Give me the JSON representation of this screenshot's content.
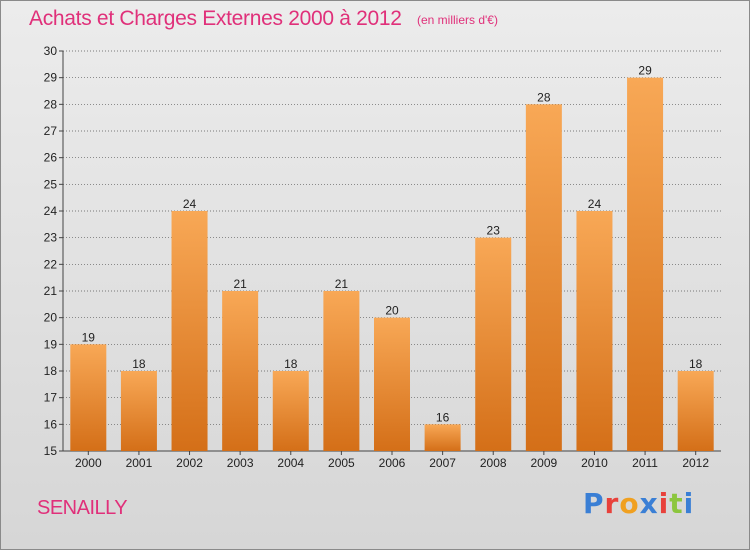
{
  "header": {
    "title": "Achats et Charges Externes 2000 à 2012",
    "subtitle": "(en milliers d'€)"
  },
  "footer": {
    "commune": "SENAILLY",
    "logo_text": "Proxiti",
    "logo_colors": [
      "#3a7fd5",
      "#e8413b",
      "#f0a020",
      "#3a7fd5",
      "#e8413b",
      "#8cc63e",
      "#3a7fd5"
    ]
  },
  "colors": {
    "bar_light": "#f8a856",
    "bar_dark": "#d46f18",
    "title": "#e0307a",
    "grid": "#555555"
  },
  "chart_data": {
    "type": "bar",
    "title": "Achats et Charges Externes 2000 à 2012",
    "subtitle": "(en milliers d'€)",
    "categories": [
      "2000",
      "2001",
      "2002",
      "2003",
      "2004",
      "2005",
      "2006",
      "2007",
      "2008",
      "2009",
      "2010",
      "2011",
      "2012"
    ],
    "values": [
      19,
      18,
      24,
      21,
      18,
      21,
      20,
      16,
      23,
      28,
      24,
      29,
      18
    ],
    "ylim": [
      15,
      30
    ],
    "yticks": [
      15,
      16,
      17,
      18,
      19,
      20,
      21,
      22,
      23,
      24,
      25,
      26,
      27,
      28,
      29,
      30
    ],
    "grid": true,
    "xlabel": "",
    "ylabel": ""
  }
}
